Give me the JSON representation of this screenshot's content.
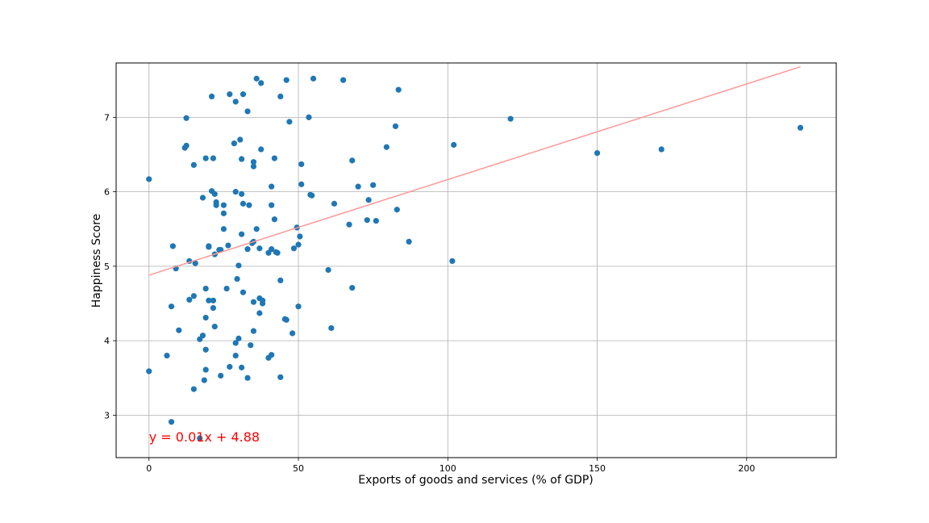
{
  "chart_data": {
    "type": "scatter",
    "title": "",
    "xlabel": "Exports of goods and services (% of GDP)",
    "ylabel": "Happiness Score",
    "xlim": [
      -11,
      230
    ],
    "ylim": [
      2.43,
      7.73
    ],
    "xticks": [
      0,
      50,
      100,
      150,
      200
    ],
    "yticks": [
      3,
      4,
      5,
      6,
      7
    ],
    "grid": true,
    "point_color": "#1f77b4",
    "regression_line": {
      "slope": 0.01284,
      "intercept": 4.88,
      "x_range": [
        0,
        218
      ],
      "color": "#ff9896",
      "equation": "y = 0.01x + 4.88",
      "equation_color": "#ff0000",
      "equation_position": [
        0,
        2.7
      ]
    },
    "points": [
      [
        0,
        6.17
      ],
      [
        0,
        3.59
      ],
      [
        6,
        3.8
      ],
      [
        7.5,
        2.91
      ],
      [
        7.5,
        4.46
      ],
      [
        8,
        5.27
      ],
      [
        9,
        4.97
      ],
      [
        10,
        4.14
      ],
      [
        12,
        6.59
      ],
      [
        12.5,
        6.99
      ],
      [
        12.5,
        6.62
      ],
      [
        13.5,
        5.07
      ],
      [
        13.5,
        4.55
      ],
      [
        15,
        6.36
      ],
      [
        15,
        4.6
      ],
      [
        15,
        3.35
      ],
      [
        15.5,
        5.04
      ],
      [
        17,
        4.02
      ],
      [
        17,
        2.69
      ],
      [
        18,
        5.92
      ],
      [
        18,
        4.07
      ],
      [
        18.5,
        3.47
      ],
      [
        19,
        6.45
      ],
      [
        19,
        4.7
      ],
      [
        19,
        4.31
      ],
      [
        19,
        3.88
      ],
      [
        19,
        3.61
      ],
      [
        20,
        5.27
      ],
      [
        20,
        5.26
      ],
      [
        20,
        4.54
      ],
      [
        21,
        7.28
      ],
      [
        21,
        6.01
      ],
      [
        21.5,
        6.45
      ],
      [
        21.5,
        4.54
      ],
      [
        21.5,
        4.44
      ],
      [
        22,
        5.97
      ],
      [
        22,
        5.16
      ],
      [
        22,
        4.19
      ],
      [
        22.5,
        5.86
      ],
      [
        22.5,
        5.82
      ],
      [
        23.5,
        5.22
      ],
      [
        24,
        5.22
      ],
      [
        24,
        3.53
      ],
      [
        25,
        5.82
      ],
      [
        25,
        5.71
      ],
      [
        25,
        5.5
      ],
      [
        26,
        4.7
      ],
      [
        26.5,
        5.28
      ],
      [
        27,
        7.31
      ],
      [
        27,
        3.65
      ],
      [
        28.5,
        6.65
      ],
      [
        29,
        7.21
      ],
      [
        29,
        6.0
      ],
      [
        29,
        3.97
      ],
      [
        29,
        3.8
      ],
      [
        29.5,
        4.83
      ],
      [
        30,
        5.01
      ],
      [
        30,
        4.03
      ],
      [
        30.5,
        6.7
      ],
      [
        31,
        6.44
      ],
      [
        31,
        5.97
      ],
      [
        31,
        5.43
      ],
      [
        31,
        3.64
      ],
      [
        31.5,
        7.31
      ],
      [
        31.5,
        5.84
      ],
      [
        31.5,
        4.65
      ],
      [
        33,
        7.08
      ],
      [
        33,
        5.23
      ],
      [
        33,
        3.5
      ],
      [
        33.5,
        5.82
      ],
      [
        34,
        3.94
      ],
      [
        34.5,
        5.31
      ],
      [
        35,
        6.34
      ],
      [
        35,
        6.4
      ],
      [
        35,
        5.33
      ],
      [
        35,
        4.52
      ],
      [
        35,
        4.13
      ],
      [
        36,
        7.52
      ],
      [
        36,
        5.5
      ],
      [
        37,
        5.24
      ],
      [
        37,
        4.57
      ],
      [
        37,
        4.37
      ],
      [
        37.5,
        7.46
      ],
      [
        37.5,
        6.57
      ],
      [
        38,
        4.54
      ],
      [
        38,
        4.5
      ],
      [
        40,
        5.18
      ],
      [
        40,
        3.77
      ],
      [
        41,
        6.07
      ],
      [
        41,
        5.82
      ],
      [
        41,
        5.23
      ],
      [
        41,
        3.81
      ],
      [
        42,
        6.45
      ],
      [
        42,
        5.63
      ],
      [
        42.5,
        5.19
      ],
      [
        43,
        5.18
      ],
      [
        44,
        7.28
      ],
      [
        44,
        4.81
      ],
      [
        44,
        3.51
      ],
      [
        45.5,
        4.29
      ],
      [
        46,
        7.5
      ],
      [
        46,
        4.28
      ],
      [
        47,
        6.94
      ],
      [
        48,
        4.1
      ],
      [
        48.5,
        5.24
      ],
      [
        49.5,
        5.52
      ],
      [
        50,
        5.29
      ],
      [
        50,
        4.46
      ],
      [
        50.5,
        5.4
      ],
      [
        51,
        6.37
      ],
      [
        51,
        6.1
      ],
      [
        53.5,
        7.0
      ],
      [
        54,
        5.96
      ],
      [
        54.5,
        5.95
      ],
      [
        55,
        7.52
      ],
      [
        60,
        4.95
      ],
      [
        61,
        4.17
      ],
      [
        62,
        5.84
      ],
      [
        65,
        7.5
      ],
      [
        67,
        5.56
      ],
      [
        68,
        6.42
      ],
      [
        68,
        4.71
      ],
      [
        70,
        6.07
      ],
      [
        73,
        5.62
      ],
      [
        73.5,
        5.89
      ],
      [
        75,
        6.09
      ],
      [
        76,
        5.61
      ],
      [
        79.5,
        6.6
      ],
      [
        82.5,
        6.88
      ],
      [
        83,
        5.76
      ],
      [
        83.5,
        7.37
      ],
      [
        87,
        5.33
      ],
      [
        101.5,
        5.07
      ],
      [
        102,
        6.63
      ],
      [
        121,
        6.98
      ],
      [
        150,
        6.52
      ],
      [
        171.5,
        6.57
      ],
      [
        218,
        6.86
      ]
    ]
  }
}
